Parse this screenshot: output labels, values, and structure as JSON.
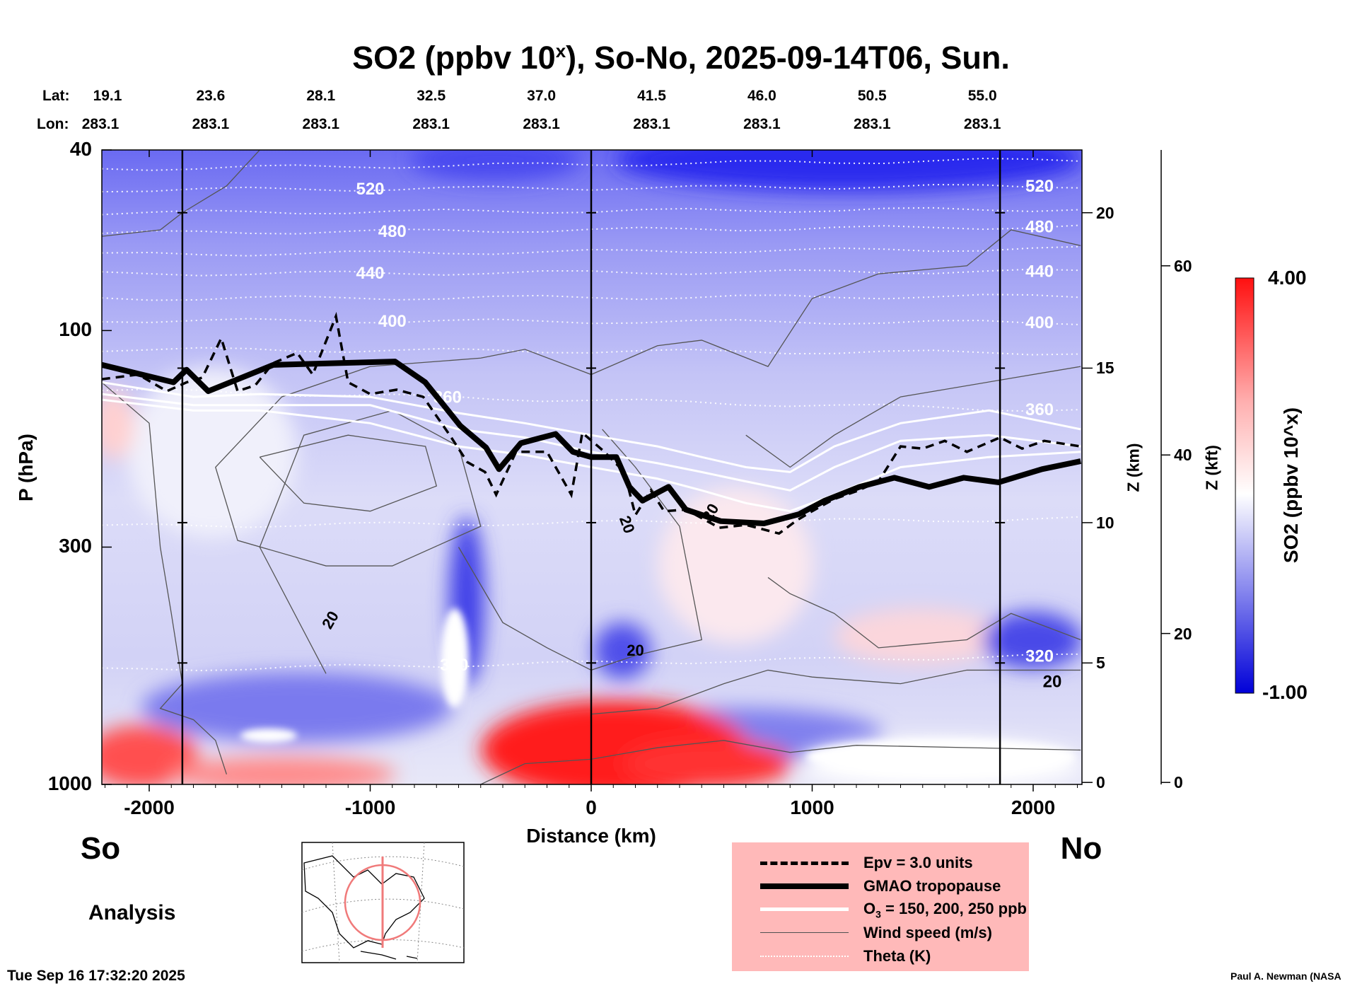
{
  "title": {
    "main": "SO2 (ppbv 10",
    "sup": "x",
    "rest": "), So-No, 2025-09-14T06, Sun."
  },
  "lat_label": "Lat:",
  "lon_label": "Lon:",
  "lats": [
    "19.1",
    "23.6",
    "28.1",
    "32.5",
    "37.0",
    "41.5",
    "46.0",
    "50.5",
    "55.0"
  ],
  "lons": [
    "283.1",
    "283.1",
    "283.1",
    "283.1",
    "283.1",
    "283.1",
    "283.1",
    "283.1",
    "283.1"
  ],
  "labels": {
    "south": "So",
    "north": "No",
    "analysis": "Analysis",
    "timestamp": "Tue Sep 16 17:32:20 2025",
    "credit": "Paul A. Newman (NASA"
  },
  "legend": [
    {
      "key": "epv",
      "text": "Epv = 3.0 units"
    },
    {
      "key": "trop",
      "text": "GMAO tropopause"
    },
    {
      "key": "o3",
      "pre": "O",
      "sub": "3",
      "text": " = 150, 200, 250 ppb"
    },
    {
      "key": "wind",
      "text": "Wind speed (m/s)"
    },
    {
      "key": "theta",
      "text": "Theta (K)"
    }
  ],
  "colors": {
    "epv": "#000000",
    "trop": "#000000",
    "o3": "#ffffff",
    "wind": "#505050",
    "theta": "#ffffff",
    "legend_bg": "#ffb9b9",
    "cbar_low": "#0000d8",
    "cbar_mid": "#ffffff",
    "cbar_high": "#ff1010"
  },
  "chart_data": {
    "type": "heatmap",
    "title": "SO2 (ppbv 10^x), So-No, 2025-09-14T06, Sun.",
    "xlabel": "Distance (km)",
    "ylabel": "P (hPa)",
    "ylabel_right1": "Z (km)",
    "ylabel_right2": "Z (kft)",
    "colorbar_label": "SO2 (ppbv 10^x)",
    "xlim": [
      -2215,
      2215
    ],
    "ylim": [
      1000,
      40
    ],
    "xticks": [
      -2000,
      -1000,
      0,
      1000,
      2000
    ],
    "xtick_labels": [
      "-2000",
      "-1000",
      "0",
      "1000",
      "2000"
    ],
    "yticks": [
      40,
      100,
      300,
      1000
    ],
    "ytick_labels": [
      "40",
      "100",
      "300",
      "1000"
    ],
    "zkm_ticks": [
      {
        "label": "0",
        "p": 990
      },
      {
        "label": "5",
        "p": 540
      },
      {
        "label": "10",
        "p": 265
      },
      {
        "label": "15",
        "p": 121
      },
      {
        "label": "20",
        "p": 55
      }
    ],
    "zkft_ticks": [
      {
        "label": "0",
        "p": 990
      },
      {
        "label": "20",
        "p": 465
      },
      {
        "label": "40",
        "p": 188
      },
      {
        "label": "60",
        "p": 72
      }
    ],
    "colorbar": {
      "min": -1.0,
      "max": 4.0,
      "min_label": "-1.00",
      "max_label": "4.00"
    },
    "vertical_markers_km": [
      -1850,
      0,
      1850
    ],
    "tropopause": [
      [
        -2215,
        119
      ],
      [
        -1890,
        130
      ],
      [
        -1831,
        122
      ],
      [
        -1733,
        136
      ],
      [
        -1438,
        119
      ],
      [
        -888,
        117
      ],
      [
        -751,
        130
      ],
      [
        -593,
        162
      ],
      [
        -476,
        181
      ],
      [
        -417,
        202
      ],
      [
        -318,
        177
      ],
      [
        -161,
        169
      ],
      [
        -83,
        185
      ],
      [
        0,
        190
      ],
      [
        114,
        190
      ],
      [
        173,
        221
      ],
      [
        232,
        237
      ],
      [
        350,
        221
      ],
      [
        428,
        248
      ],
      [
        586,
        263
      ],
      [
        782,
        266
      ],
      [
        939,
        254
      ],
      [
        1057,
        237
      ],
      [
        1214,
        221
      ],
      [
        1372,
        211
      ],
      [
        1529,
        221
      ],
      [
        1686,
        211
      ],
      [
        1843,
        216
      ],
      [
        2040,
        202
      ],
      [
        2215,
        194
      ]
    ],
    "epv": [
      [
        -2215,
        128
      ],
      [
        -2050,
        125
      ],
      [
        -1920,
        136
      ],
      [
        -1830,
        130
      ],
      [
        -1760,
        127
      ],
      [
        -1674,
        104
      ],
      [
        -1600,
        136
      ],
      [
        -1520,
        132
      ],
      [
        -1440,
        118
      ],
      [
        -1330,
        112
      ],
      [
        -1260,
        125
      ],
      [
        -1155,
        93
      ],
      [
        -1100,
        130
      ],
      [
        -1000,
        138
      ],
      [
        -880,
        135
      ],
      [
        -760,
        140
      ],
      [
        -640,
        170
      ],
      [
        -560,
        195
      ],
      [
        -480,
        205
      ],
      [
        -430,
        230
      ],
      [
        -340,
        185
      ],
      [
        -200,
        185
      ],
      [
        -90,
        230
      ],
      [
        -40,
        168
      ],
      [
        60,
        185
      ],
      [
        150,
        205
      ],
      [
        200,
        255
      ],
      [
        270,
        225
      ],
      [
        330,
        250
      ],
      [
        430,
        248
      ],
      [
        580,
        272
      ],
      [
        700,
        268
      ],
      [
        850,
        280
      ],
      [
        930,
        262
      ],
      [
        1000,
        250
      ],
      [
        1100,
        235
      ],
      [
        1200,
        226
      ],
      [
        1300,
        215
      ],
      [
        1400,
        180
      ],
      [
        1500,
        182
      ],
      [
        1600,
        175
      ],
      [
        1700,
        185
      ],
      [
        1850,
        172
      ],
      [
        1950,
        182
      ],
      [
        2050,
        175
      ],
      [
        2215,
        180
      ]
    ],
    "o3": [
      {
        "value": 150,
        "points": [
          [
            -2215,
            130
          ],
          [
            -1800,
            140
          ],
          [
            -1500,
            138
          ],
          [
            -1000,
            140
          ],
          [
            -600,
            152
          ],
          [
            -300,
            160
          ],
          [
            0,
            170
          ],
          [
            300,
            180
          ],
          [
            500,
            190
          ],
          [
            700,
            200
          ],
          [
            900,
            205
          ],
          [
            1100,
            180
          ],
          [
            1400,
            160
          ],
          [
            1800,
            150
          ],
          [
            2215,
            165
          ]
        ]
      },
      {
        "value": 200,
        "points": [
          [
            -2215,
            138
          ],
          [
            -1800,
            146
          ],
          [
            -1500,
            146
          ],
          [
            -1000,
            146
          ],
          [
            -600,
            165
          ],
          [
            -300,
            172
          ],
          [
            0,
            185
          ],
          [
            300,
            196
          ],
          [
            500,
            205
          ],
          [
            700,
            215
          ],
          [
            900,
            225
          ],
          [
            1100,
            200
          ],
          [
            1400,
            175
          ],
          [
            1800,
            170
          ],
          [
            2215,
            180
          ]
        ]
      },
      {
        "value": 250,
        "points": [
          [
            -2215,
            142
          ],
          [
            -1800,
            150
          ],
          [
            -1500,
            150
          ],
          [
            -1000,
            160
          ],
          [
            -600,
            180
          ],
          [
            -300,
            188
          ],
          [
            0,
            200
          ],
          [
            300,
            212
          ],
          [
            500,
            225
          ],
          [
            700,
            240
          ],
          [
            900,
            250
          ],
          [
            1100,
            230
          ],
          [
            1400,
            200
          ],
          [
            1800,
            190
          ],
          [
            2215,
            185
          ]
        ]
      }
    ],
    "theta": [
      {
        "value": 540,
        "label": "",
        "left_p": 44,
        "right_p": 42
      },
      {
        "value": 520,
        "label": "520",
        "left_p": 49,
        "right_p": 48,
        "label_km": -1000
      },
      {
        "value": 500,
        "label": "",
        "left_p": 55,
        "right_p": 54
      },
      {
        "value": 480,
        "label": "480",
        "left_p": 61,
        "right_p": 59,
        "label_km": -900
      },
      {
        "value": 460,
        "label": "",
        "left_p": 68,
        "right_p": 66
      },
      {
        "value": 440,
        "label": "440",
        "left_p": 75,
        "right_p": 74,
        "label_km": -1000
      },
      {
        "value": 420,
        "label": "",
        "left_p": 85,
        "right_p": 84
      },
      {
        "value": 400,
        "label": "400",
        "left_p": 95,
        "right_p": 96,
        "label_km": -900
      },
      {
        "value": 380,
        "label": "",
        "left_p": 110,
        "right_p": 112
      },
      {
        "value": 360,
        "label": "360",
        "left_p": 135,
        "right_p": 150,
        "label_km": -650
      },
      {
        "value": 340,
        "label": "",
        "left_p": 270,
        "right_p": 260
      },
      {
        "value": 320,
        "label": "320",
        "left_p": 560,
        "right_p": 520,
        "label_km": -620
      }
    ],
    "wind_contour_label": "20"
  }
}
